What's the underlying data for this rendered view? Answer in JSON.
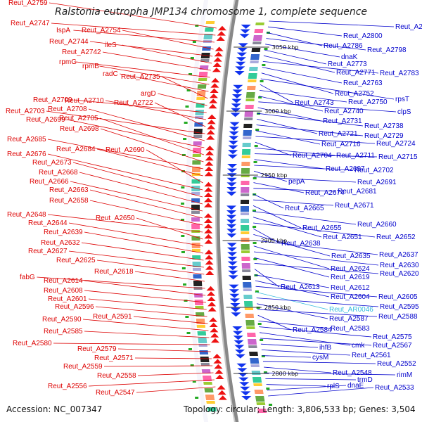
{
  "title": "Ralstonia eutropha JMP134 chromosome 1, complete sequence",
  "footer": {
    "accession": "Accession: NC_007347",
    "topology": "Topology: circular; Length: 3,806,533 bp; Genes: 3,504"
  },
  "colors": {
    "left_label": "#dd0000",
    "right_label": "#0000cc",
    "highlight": "#33bbdd",
    "backbone": "#888888"
  },
  "kbp_markers": [
    "3050 kbp",
    "3000 kbp",
    "2950 kbp",
    "2900 kbp",
    "2850 kbp",
    "2800 kbp"
  ],
  "left_labels": [
    "Reut_A2759",
    "Reut_A2747",
    "IspA",
    "Reut_A2754",
    "Reut_A2744",
    "ileS",
    "Reut_A2742",
    "rpmG",
    "rpmB",
    "radC",
    "Reut_A2735",
    "argD",
    "Reut_A2709",
    "Reut_A2710",
    "Reut_A2722",
    "Reut_A2703",
    "Reut_A2708",
    "Reut_A2699",
    "Reut_A2705",
    "Reut_A2698",
    "Reut_A2685",
    "Reut_A2684",
    "Reut_A2690",
    "Reut_A2676",
    "Reut_A2673",
    "Reut_A2668",
    "Reut_A2666",
    "Reut_A2663",
    "Reut_A2658",
    "Reut_A2648",
    "Reut_A2650",
    "Reut_A2644",
    "Reut_A2639",
    "Reut_A2632",
    "Reut_A2627",
    "Reut_A2625",
    "Reut_A2618",
    "fabG",
    "Reut_A2614",
    "Reut_A2608",
    "Reut_A2601",
    "Reut_A2596",
    "Reut_A2591",
    "Reut_A2590",
    "Reut_A2585",
    "Reut_A2580",
    "Reut_A2579",
    "Reut_A2571",
    "Reut_A2559",
    "Reut_A2558",
    "Reut_A2556",
    "Reut_A2547"
  ],
  "right_labels": [
    "Reut_A2815",
    "Reut_A2800",
    "Reut_A2786",
    "Reut_A2798",
    "dnaK",
    "Reut_A2773",
    "Reut_A2771",
    "Reut_A2783",
    "Reut_A2763",
    "Reut_A2752",
    "rpsT",
    "Reut_A2743",
    "Reut_A2750",
    "Reut_A2740",
    "clpS",
    "Reut_A2731",
    "Reut_A2738",
    "Reut_A2721",
    "Reut_A2729",
    "Reut_A2716",
    "Reut_A2724",
    "Reut_A2704",
    "Reut_A2711",
    "Reut_A2715",
    "Reut_A2697",
    "Reut_A2702",
    "pepA",
    "Reut_A2691",
    "Reut_A2674",
    "Reut_A2681",
    "Reut_A2665",
    "Reut_A2671",
    "Reut_A2655",
    "Reut_A2660",
    "Reut_A2651",
    "Reut_A2652",
    "Reut_A2638",
    "Reut_A2635",
    "Reut_A2637",
    "Reut_A2624",
    "Reut_A2630",
    "Reut_A2619",
    "Reut_A2620",
    "Reut_A2613",
    "Reut_A2612",
    "Reut_A2604",
    "Reut_A2605",
    "Reut_AR0046",
    "Reut_A2595",
    "Reut_A2587",
    "Reut_A2588",
    "Reut_A2584",
    "Reut_A2583",
    "Reut_A2575",
    "cmk",
    "Reut_A2567",
    "ihfB",
    "Reut_A2561",
    "cysM",
    "Reut_A2552",
    "Reut_A2548",
    "rimM",
    "trmD",
    "rplS",
    "dnaE",
    "Reut_A2533"
  ]
}
